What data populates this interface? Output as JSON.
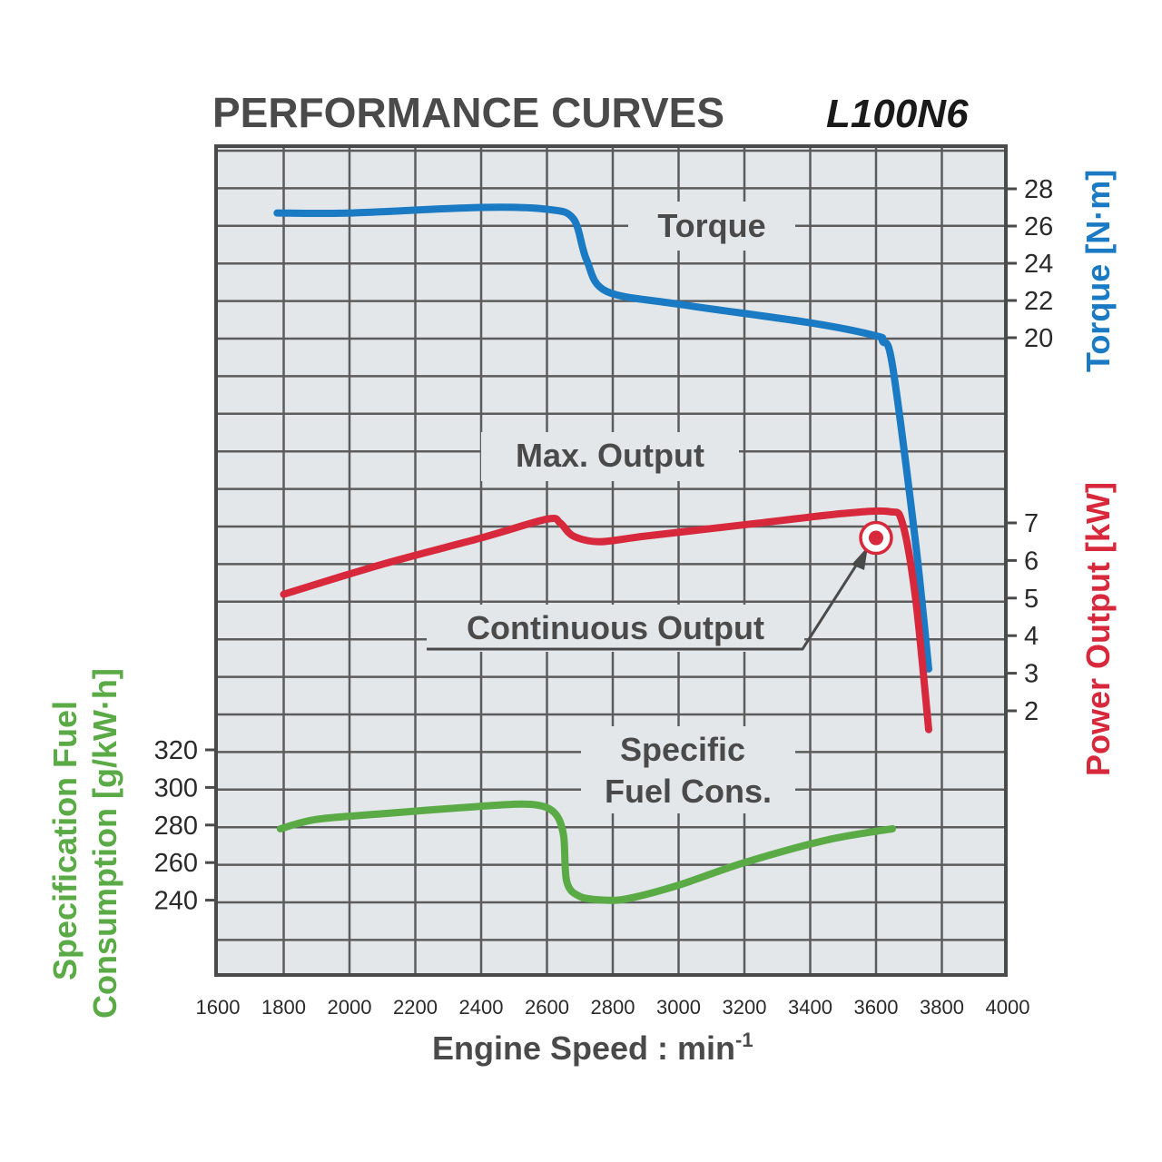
{
  "chart_data": {
    "type": "line",
    "title": "PERFORMANCE CURVES",
    "model": "L100N6",
    "xlabel": "Engine Speed : min",
    "xlabel_sup": "-1",
    "x_ticks": [
      "1600",
      "1800",
      "2000",
      "2200",
      "2400",
      "2600",
      "2800",
      "3000",
      "3200",
      "3400",
      "3600",
      "3800",
      "4000"
    ],
    "xlim": [
      1600,
      4000
    ],
    "axes": {
      "torque": {
        "label": "Torque [N·m]",
        "ticks": [
          "28",
          "26",
          "24",
          "22",
          "20"
        ],
        "ylim": [
          20,
          28
        ],
        "color": "#1a7bc4"
      },
      "power": {
        "label": "Power Output [kW]",
        "ticks": [
          "7",
          "6",
          "5",
          "4",
          "3",
          "2"
        ],
        "ylim": [
          2,
          7
        ],
        "color": "#d8283c"
      },
      "fuel": {
        "label_line1": "Specification Fuel",
        "label_line2": "Consumption [g/kW·h]",
        "ticks": [
          "320",
          "300",
          "280",
          "260",
          "240"
        ],
        "ylim": [
          240,
          320
        ],
        "color": "#5aaa46"
      }
    },
    "series": [
      {
        "name": "Torque",
        "axis": "torque",
        "color": "#1a7bc4",
        "x": [
          1780,
          2000,
          2400,
          2600,
          2680,
          2720,
          2780,
          3000,
          3400,
          3600,
          3620,
          3650,
          3720,
          3760
        ],
        "y": [
          26.7,
          26.7,
          27.0,
          26.9,
          26.4,
          24.2,
          22.5,
          21.8,
          20.8,
          20.1,
          19.8,
          18.5,
          9.0,
          2.2
        ]
      },
      {
        "name": "Max. Output",
        "axis": "power",
        "color": "#d8283c",
        "x": [
          1800,
          2100,
          2400,
          2600,
          2640,
          2680,
          2760,
          2900,
          3200,
          3500,
          3640,
          3680,
          3720,
          3760
        ],
        "y": [
          5.1,
          5.9,
          6.6,
          7.1,
          7.0,
          6.65,
          6.5,
          6.65,
          6.95,
          7.25,
          7.3,
          7.0,
          5.0,
          1.5
        ]
      },
      {
        "name": "Specific Fuel Cons.",
        "axis": "fuel",
        "color": "#5aaa46",
        "x": [
          1790,
          1900,
          2100,
          2400,
          2550,
          2620,
          2650,
          2660,
          2700,
          2780,
          2850,
          3000,
          3200,
          3450,
          3650
        ],
        "y": [
          278,
          283,
          286,
          290,
          291,
          287,
          275,
          250,
          242,
          240,
          241,
          248,
          260,
          272,
          278
        ]
      }
    ],
    "point": {
      "name": "Continuous Output",
      "x": 3600,
      "y": 6.6,
      "axis": "power",
      "color": "#d8283c"
    },
    "labels": {
      "torque": "Torque",
      "max_output": "Max. Output",
      "continuous_output": "Continuous Output",
      "fuel_line1": "Specific",
      "fuel_line2": "Fuel Cons."
    },
    "grid": true,
    "background": "#e3e7ea",
    "grid_color": "#5c5c5c"
  }
}
